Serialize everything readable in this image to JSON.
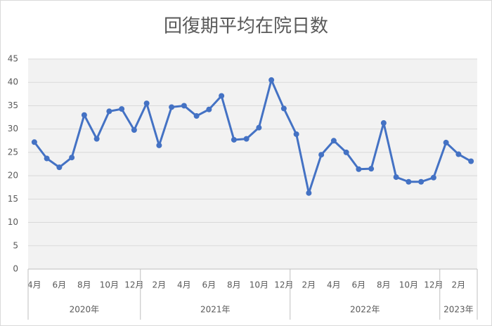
{
  "chart_data": {
    "type": "line",
    "title": "回復期平均在院日数",
    "categories": [
      "4月",
      null,
      "6月",
      null,
      "8月",
      null,
      "10月",
      null,
      "12月",
      null,
      "2月",
      null,
      "4月",
      null,
      "6月",
      null,
      "8月",
      null,
      "10月",
      null,
      "12月",
      null,
      "2月",
      null,
      "4月",
      null,
      "6月",
      null,
      "8月",
      null,
      "10月",
      null,
      "12月",
      null,
      "2月",
      null
    ],
    "years": [
      "2020年",
      null,
      null,
      null,
      null,
      null,
      null,
      null,
      null,
      "2021年",
      null,
      null,
      null,
      null,
      null,
      null,
      null,
      null,
      null,
      null,
      null,
      "2022年",
      null,
      null,
      null,
      null,
      null,
      null,
      null,
      null,
      null,
      null,
      null,
      "2023年",
      null,
      null
    ],
    "series": [
      {
        "color": "#4472c4",
        "values": [
          27.2,
          23.7,
          21.8,
          23.9,
          33.0,
          27.9,
          33.8,
          34.3,
          29.8,
          35.5,
          26.5,
          34.7,
          35.0,
          32.8,
          34.2,
          37.1,
          27.7,
          27.9,
          30.3,
          40.5,
          34.4,
          28.9,
          16.3,
          24.5,
          27.5,
          25.0,
          21.4,
          21.5,
          31.3,
          19.7,
          18.7,
          18.7,
          19.6,
          27.1,
          24.6,
          23.1
        ]
      }
    ],
    "ylim": [
      0,
      45
    ],
    "yticks": [
      0,
      5,
      10,
      15,
      20,
      25,
      30,
      35,
      40,
      45
    ],
    "grid": true
  }
}
